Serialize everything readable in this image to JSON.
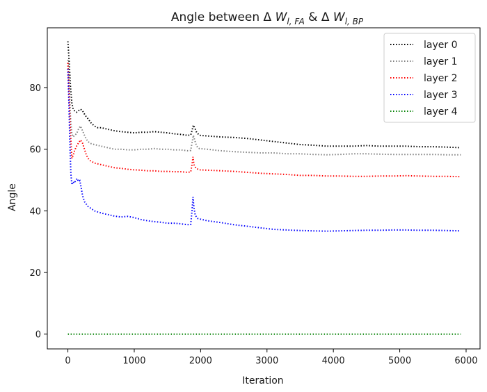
{
  "chart_data": {
    "type": "line",
    "title": {
      "prefix": "Angle between Δ ",
      "w1": "W",
      "sub1": "l, FA",
      "middle": " & Δ ",
      "w2": "W",
      "sub2": "l, BP"
    },
    "xlabel": "Iteration",
    "ylabel": "Angle",
    "xlim": [
      -310,
      6210
    ],
    "ylim": [
      -4.8,
      99.4
    ],
    "xticks": [
      0,
      1000,
      2000,
      3000,
      4000,
      5000,
      6000
    ],
    "yticks": [
      0,
      20,
      40,
      60,
      80
    ],
    "grid": false,
    "legend_position": "top-right",
    "series": [
      {
        "name": "layer 0",
        "color": "#000000",
        "points": [
          [
            0,
            95
          ],
          [
            20,
            88
          ],
          [
            40,
            80
          ],
          [
            60,
            75
          ],
          [
            80,
            73
          ],
          [
            100,
            72.5
          ],
          [
            130,
            72
          ],
          [
            160,
            72.5
          ],
          [
            190,
            73
          ],
          [
            220,
            72.5
          ],
          [
            260,
            71
          ],
          [
            300,
            70
          ],
          [
            350,
            68.5
          ],
          [
            400,
            67.5
          ],
          [
            450,
            67
          ],
          [
            500,
            67
          ],
          [
            600,
            66.5
          ],
          [
            700,
            66
          ],
          [
            800,
            65.7
          ],
          [
            900,
            65.5
          ],
          [
            1000,
            65.3
          ],
          [
            1100,
            65.5
          ],
          [
            1200,
            65.5
          ],
          [
            1300,
            65.7
          ],
          [
            1400,
            65.5
          ],
          [
            1500,
            65.3
          ],
          [
            1600,
            65
          ],
          [
            1700,
            64.8
          ],
          [
            1800,
            64.5
          ],
          [
            1850,
            64.6
          ],
          [
            1870,
            66
          ],
          [
            1890,
            67.8
          ],
          [
            1910,
            67
          ],
          [
            1940,
            65.5
          ],
          [
            1980,
            64.5
          ],
          [
            2100,
            64.3
          ],
          [
            2300,
            64
          ],
          [
            2500,
            63.8
          ],
          [
            2700,
            63.5
          ],
          [
            2900,
            63
          ],
          [
            3100,
            62.5
          ],
          [
            3300,
            62
          ],
          [
            3500,
            61.5
          ],
          [
            3700,
            61.3
          ],
          [
            3900,
            61
          ],
          [
            4100,
            61
          ],
          [
            4300,
            61
          ],
          [
            4500,
            61.2
          ],
          [
            4700,
            61
          ],
          [
            4900,
            61
          ],
          [
            5100,
            61
          ],
          [
            5300,
            60.8
          ],
          [
            5500,
            60.8
          ],
          [
            5700,
            60.7
          ],
          [
            5920,
            60.5
          ]
        ]
      },
      {
        "name": "layer 1",
        "color": "#808080",
        "points": [
          [
            0,
            89
          ],
          [
            20,
            80
          ],
          [
            40,
            70
          ],
          [
            60,
            65
          ],
          [
            80,
            64
          ],
          [
            100,
            64.5
          ],
          [
            130,
            65
          ],
          [
            160,
            66.5
          ],
          [
            190,
            67.5
          ],
          [
            220,
            66
          ],
          [
            260,
            64
          ],
          [
            300,
            62.5
          ],
          [
            350,
            61.8
          ],
          [
            400,
            61.5
          ],
          [
            500,
            61
          ],
          [
            600,
            60.5
          ],
          [
            700,
            60
          ],
          [
            800,
            60
          ],
          [
            900,
            59.8
          ],
          [
            1000,
            59.8
          ],
          [
            1100,
            60
          ],
          [
            1200,
            60
          ],
          [
            1300,
            60.2
          ],
          [
            1400,
            60
          ],
          [
            1500,
            60
          ],
          [
            1600,
            59.8
          ],
          [
            1700,
            59.8
          ],
          [
            1800,
            59.5
          ],
          [
            1850,
            59.6
          ],
          [
            1870,
            62
          ],
          [
            1890,
            64.5
          ],
          [
            1910,
            63
          ],
          [
            1940,
            61
          ],
          [
            1980,
            60.2
          ],
          [
            2100,
            60
          ],
          [
            2300,
            59.5
          ],
          [
            2500,
            59.2
          ],
          [
            2700,
            59
          ],
          [
            2900,
            58.8
          ],
          [
            3100,
            58.8
          ],
          [
            3300,
            58.5
          ],
          [
            3500,
            58.5
          ],
          [
            3700,
            58.3
          ],
          [
            3900,
            58.2
          ],
          [
            4100,
            58.3
          ],
          [
            4300,
            58.5
          ],
          [
            4500,
            58.5
          ],
          [
            4700,
            58.4
          ],
          [
            4900,
            58.3
          ],
          [
            5100,
            58.3
          ],
          [
            5300,
            58.3
          ],
          [
            5500,
            58.3
          ],
          [
            5700,
            58.2
          ],
          [
            5920,
            58.2
          ]
        ]
      },
      {
        "name": "layer 2",
        "color": "#ff0000",
        "points": [
          [
            0,
            88
          ],
          [
            20,
            76
          ],
          [
            40,
            65
          ],
          [
            60,
            57
          ],
          [
            80,
            58
          ],
          [
            100,
            59.5
          ],
          [
            130,
            61
          ],
          [
            160,
            62
          ],
          [
            190,
            63
          ],
          [
            220,
            62
          ],
          [
            250,
            60
          ],
          [
            280,
            58
          ],
          [
            320,
            56.5
          ],
          [
            400,
            55.5
          ],
          [
            500,
            55
          ],
          [
            600,
            54.5
          ],
          [
            700,
            54
          ],
          [
            800,
            53.8
          ],
          [
            900,
            53.5
          ],
          [
            1000,
            53.3
          ],
          [
            1100,
            53.2
          ],
          [
            1200,
            53
          ],
          [
            1300,
            53
          ],
          [
            1400,
            52.8
          ],
          [
            1500,
            52.8
          ],
          [
            1600,
            52.7
          ],
          [
            1700,
            52.7
          ],
          [
            1800,
            52.5
          ],
          [
            1850,
            52.6
          ],
          [
            1870,
            55
          ],
          [
            1885,
            57.5
          ],
          [
            1900,
            55
          ],
          [
            1930,
            53.8
          ],
          [
            1980,
            53.3
          ],
          [
            2100,
            53.2
          ],
          [
            2300,
            53
          ],
          [
            2500,
            52.8
          ],
          [
            2700,
            52.5
          ],
          [
            2900,
            52.2
          ],
          [
            3100,
            52
          ],
          [
            3300,
            51.8
          ],
          [
            3500,
            51.5
          ],
          [
            3700,
            51.5
          ],
          [
            3900,
            51.3
          ],
          [
            4100,
            51.3
          ],
          [
            4300,
            51.2
          ],
          [
            4500,
            51.2
          ],
          [
            4700,
            51.3
          ],
          [
            4900,
            51.3
          ],
          [
            5100,
            51.4
          ],
          [
            5300,
            51.3
          ],
          [
            5500,
            51.2
          ],
          [
            5700,
            51.2
          ],
          [
            5920,
            51.1
          ]
        ]
      },
      {
        "name": "layer 3",
        "color": "#0000ff",
        "points": [
          [
            0,
            86
          ],
          [
            15,
            75
          ],
          [
            30,
            62
          ],
          [
            45,
            52
          ],
          [
            60,
            48.5
          ],
          [
            80,
            49.5
          ],
          [
            100,
            49
          ],
          [
            120,
            50
          ],
          [
            140,
            50.5
          ],
          [
            160,
            49.5
          ],
          [
            180,
            49.8
          ],
          [
            200,
            47.5
          ],
          [
            220,
            45
          ],
          [
            250,
            43
          ],
          [
            300,
            41.5
          ],
          [
            400,
            40
          ],
          [
            500,
            39.3
          ],
          [
            600,
            38.8
          ],
          [
            700,
            38.3
          ],
          [
            800,
            38
          ],
          [
            900,
            38.2
          ],
          [
            1000,
            37.8
          ],
          [
            1100,
            37.2
          ],
          [
            1200,
            36.8
          ],
          [
            1300,
            36.5
          ],
          [
            1400,
            36.3
          ],
          [
            1500,
            36
          ],
          [
            1600,
            36
          ],
          [
            1700,
            35.8
          ],
          [
            1800,
            35.5
          ],
          [
            1850,
            35.6
          ],
          [
            1870,
            40
          ],
          [
            1885,
            44.5
          ],
          [
            1900,
            41
          ],
          [
            1920,
            38.5
          ],
          [
            1960,
            37.5
          ],
          [
            2100,
            36.8
          ],
          [
            2300,
            36.2
          ],
          [
            2500,
            35.5
          ],
          [
            2700,
            35
          ],
          [
            2900,
            34.5
          ],
          [
            3100,
            34
          ],
          [
            3300,
            33.8
          ],
          [
            3500,
            33.6
          ],
          [
            3700,
            33.5
          ],
          [
            3900,
            33.4
          ],
          [
            4100,
            33.5
          ],
          [
            4300,
            33.6
          ],
          [
            4500,
            33.7
          ],
          [
            4700,
            33.7
          ],
          [
            4900,
            33.8
          ],
          [
            5100,
            33.8
          ],
          [
            5300,
            33.7
          ],
          [
            5500,
            33.7
          ],
          [
            5700,
            33.6
          ],
          [
            5920,
            33.5
          ]
        ]
      },
      {
        "name": "layer 4",
        "color": "#008000",
        "points": [
          [
            0,
            0
          ],
          [
            500,
            0
          ],
          [
            1000,
            0
          ],
          [
            1500,
            0
          ],
          [
            2000,
            0
          ],
          [
            2500,
            0
          ],
          [
            3000,
            0
          ],
          [
            3500,
            0
          ],
          [
            4000,
            0
          ],
          [
            4500,
            0
          ],
          [
            5000,
            0
          ],
          [
            5500,
            0
          ],
          [
            5920,
            0
          ]
        ]
      }
    ]
  }
}
